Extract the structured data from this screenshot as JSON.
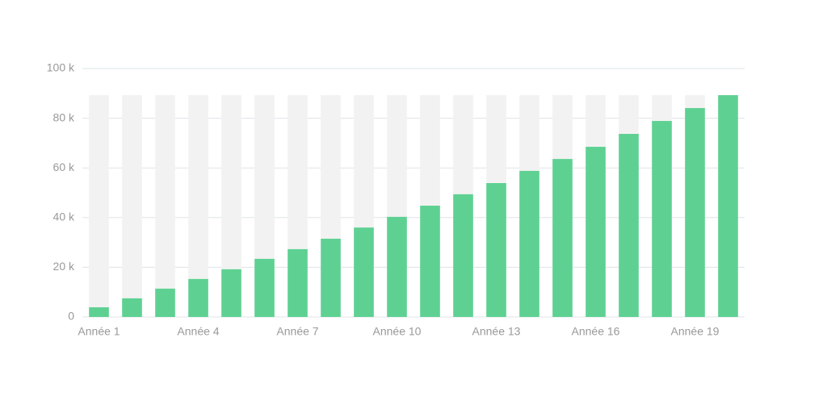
{
  "chart_data": {
    "type": "bar",
    "categories": [
      "Année 1",
      null,
      null,
      "Année 4",
      null,
      null,
      "Année 7",
      null,
      null,
      "Année 10",
      null,
      null,
      "Année 13",
      null,
      null,
      "Année 16",
      null,
      null,
      "Année 19",
      null
    ],
    "values": [
      3900,
      7500,
      11400,
      15300,
      19200,
      23400,
      27300,
      31500,
      36000,
      40300,
      44800,
      49400,
      53900,
      58800,
      63600,
      68500,
      73700,
      78900,
      84100,
      89300
    ],
    "color": "#5ed192",
    "ylim": [
      0,
      100000
    ],
    "yticks": [
      0,
      {
        "value": 20000,
        "label": "20 k"
      },
      {
        "value": 40000,
        "label": "40 k"
      },
      {
        "value": 60000,
        "label": "60 k"
      },
      {
        "value": 80000,
        "label": "80 k"
      },
      {
        "value": 100000,
        "label": "100 k"
      }
    ],
    "grid": true
  }
}
